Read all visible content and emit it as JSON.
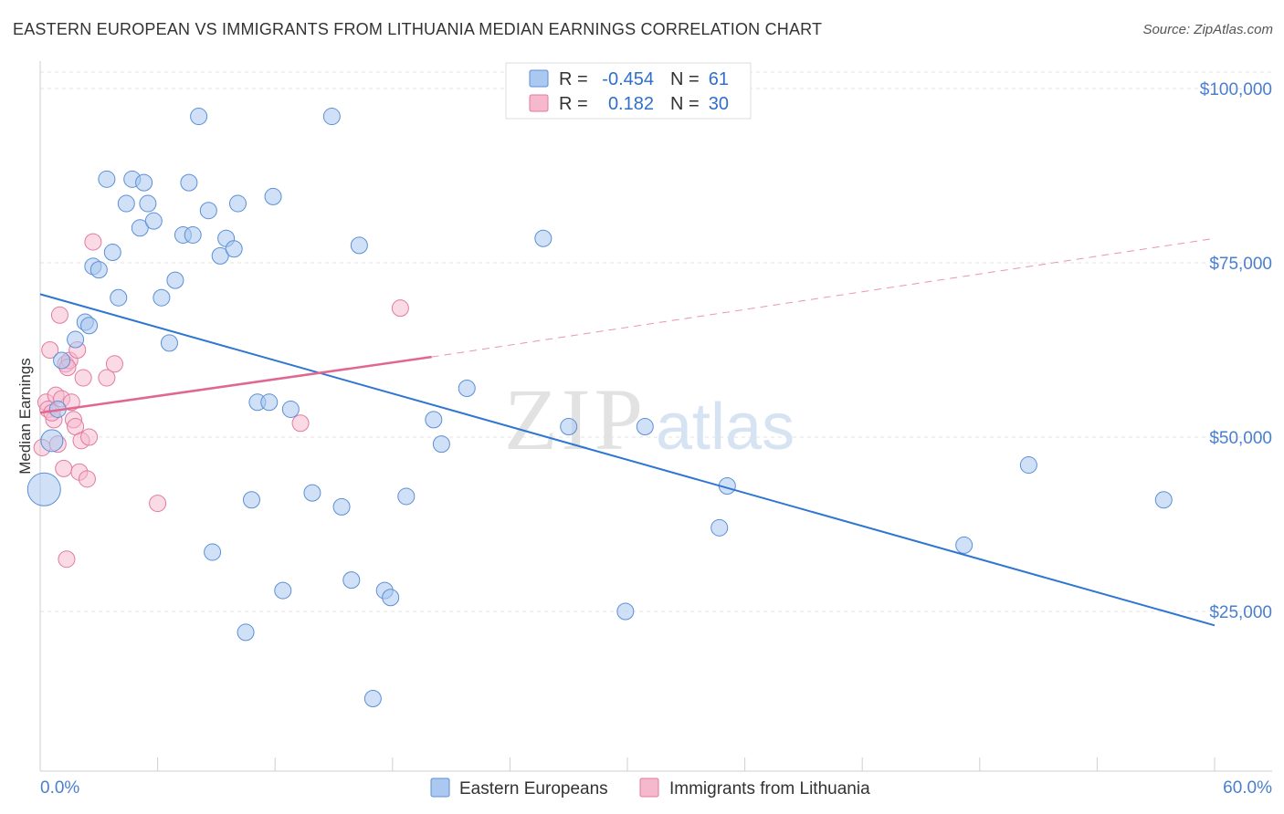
{
  "header": {
    "title": "EASTERN EUROPEAN VS IMMIGRANTS FROM LITHUANIA MEDIAN EARNINGS CORRELATION CHART",
    "source": "Source: ZipAtlas.com"
  },
  "watermark": {
    "zip": "ZIP",
    "atlas": "atlas"
  },
  "legend_box": {
    "rows": [
      {
        "r_label": "R =",
        "r_value": "-0.454",
        "n_label": "N =",
        "n_value": "61"
      },
      {
        "r_label": "R =",
        "r_value": "0.182",
        "n_label": "N =",
        "n_value": "30"
      }
    ]
  },
  "bottom_legend": [
    "Eastern Europeans",
    "Immigrants from Lithuania"
  ],
  "chart_data": {
    "type": "scatter",
    "xlabel": "",
    "ylabel": "Median Earnings",
    "xlim": [
      0,
      60
    ],
    "ylim": [
      0,
      105000
    ],
    "x_tick_labels": [
      "0.0%",
      "60.0%"
    ],
    "y_ticks": [
      {
        "value": 25000,
        "label": "$25,000"
      },
      {
        "value": 50000,
        "label": "$50,000"
      },
      {
        "value": 75000,
        "label": "$75,000"
      },
      {
        "value": 100000,
        "label": "$100,000"
      }
    ],
    "grid": true,
    "legend_position": "top-center",
    "colors": {
      "blue_fill": "#aac8f0",
      "blue_stroke": "#5b8fd6",
      "blue_line": "#2e76d2",
      "pink_fill": "#f5b8cc",
      "pink_stroke": "#e27aa0",
      "pink_line": "#e06890"
    },
    "series": [
      {
        "name": "Eastern Europeans",
        "trend": {
          "x0": 0,
          "y0": 70500,
          "x1": 60,
          "y1": 23000,
          "dashed_from": null
        },
        "points": [
          [
            0.2,
            42500,
            18
          ],
          [
            0.6,
            49500,
            12
          ],
          [
            0.9,
            54000,
            9
          ],
          [
            1.1,
            61000,
            9
          ],
          [
            1.8,
            64000,
            9
          ],
          [
            2.3,
            66500,
            9
          ],
          [
            2.5,
            66000,
            9
          ],
          [
            2.7,
            74500,
            9
          ],
          [
            3.0,
            74000,
            9
          ],
          [
            3.4,
            87000,
            9
          ],
          [
            3.7,
            76500,
            9
          ],
          [
            4.0,
            70000,
            9
          ],
          [
            4.4,
            83500,
            9
          ],
          [
            4.7,
            87000,
            9
          ],
          [
            5.1,
            80000,
            9
          ],
          [
            5.3,
            86500,
            9
          ],
          [
            5.5,
            83500,
            9
          ],
          [
            5.8,
            81000,
            9
          ],
          [
            6.2,
            70000,
            9
          ],
          [
            6.6,
            63500,
            9
          ],
          [
            6.9,
            72500,
            9
          ],
          [
            7.3,
            79000,
            9
          ],
          [
            7.6,
            86500,
            9
          ],
          [
            7.8,
            79000,
            9
          ],
          [
            8.1,
            96000,
            9
          ],
          [
            8.6,
            82500,
            9
          ],
          [
            8.8,
            33500,
            9
          ],
          [
            9.2,
            76000,
            9
          ],
          [
            9.5,
            78500,
            9
          ],
          [
            9.9,
            77000,
            9
          ],
          [
            10.1,
            83500,
            9
          ],
          [
            10.5,
            22000,
            9
          ],
          [
            10.8,
            41000,
            9
          ],
          [
            11.1,
            55000,
            9
          ],
          [
            11.7,
            55000,
            9
          ],
          [
            11.9,
            84500,
            9
          ],
          [
            12.4,
            28000,
            9
          ],
          [
            12.8,
            54000,
            9
          ],
          [
            13.9,
            42000,
            9
          ],
          [
            14.9,
            96000,
            9
          ],
          [
            15.4,
            40000,
            9
          ],
          [
            15.9,
            29500,
            9
          ],
          [
            16.3,
            77500,
            9
          ],
          [
            17.0,
            12500,
            9
          ],
          [
            17.6,
            28000,
            9
          ],
          [
            17.9,
            27000,
            9
          ],
          [
            18.7,
            41500,
            9
          ],
          [
            20.1,
            52500,
            9
          ],
          [
            20.5,
            49000,
            9
          ],
          [
            21.8,
            57000,
            9
          ],
          [
            25.7,
            78500,
            9
          ],
          [
            27.0,
            51500,
            9
          ],
          [
            29.9,
            25000,
            9
          ],
          [
            30.9,
            51500,
            9
          ],
          [
            34.7,
            37000,
            9
          ],
          [
            35.1,
            43000,
            9
          ],
          [
            47.2,
            34500,
            9
          ],
          [
            50.5,
            46000,
            9
          ],
          [
            57.4,
            41000,
            9
          ],
          [
            57.4,
            41000,
            0
          ],
          [
            57.4,
            41000,
            0
          ]
        ]
      },
      {
        "name": "Immigrants from Lithuania",
        "trend": {
          "x0": 0,
          "y0": 53500,
          "x1": 20.0,
          "y1": 61500,
          "dashed_to_x": 60,
          "dashed_to_y": 78500
        },
        "points": [
          [
            0.1,
            48500,
            9
          ],
          [
            0.3,
            55000,
            9
          ],
          [
            0.4,
            54000,
            9
          ],
          [
            0.5,
            62500,
            9
          ],
          [
            0.7,
            52500,
            9
          ],
          [
            0.8,
            56000,
            9
          ],
          [
            0.9,
            49000,
            9
          ],
          [
            1.0,
            67500,
            9
          ],
          [
            1.1,
            55500,
            9
          ],
          [
            1.2,
            45500,
            9
          ],
          [
            1.3,
            60500,
            9
          ],
          [
            1.35,
            32500,
            9
          ],
          [
            1.5,
            61000,
            9
          ],
          [
            1.6,
            55000,
            9
          ],
          [
            1.7,
            52500,
            9
          ],
          [
            1.8,
            51500,
            9
          ],
          [
            1.9,
            62500,
            9
          ],
          [
            2.0,
            45000,
            9
          ],
          [
            2.1,
            49500,
            9
          ],
          [
            2.2,
            58500,
            9
          ],
          [
            2.4,
            44000,
            9
          ],
          [
            2.5,
            50000,
            9
          ],
          [
            2.7,
            78000,
            9
          ],
          [
            3.4,
            58500,
            9
          ],
          [
            3.8,
            60500,
            9
          ],
          [
            6.0,
            40500,
            9
          ],
          [
            13.3,
            52000,
            9
          ],
          [
            18.4,
            68500,
            9
          ],
          [
            0.6,
            53500,
            9
          ],
          [
            1.4,
            60000,
            9
          ]
        ]
      }
    ]
  }
}
